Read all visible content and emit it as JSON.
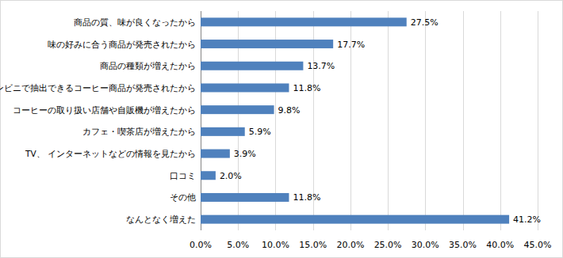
{
  "chart_data": {
    "type": "bar",
    "orientation": "horizontal",
    "categories": [
      "商品の質、味が良くなったから",
      "味の好みに合う商品が発売されたから",
      "商品の種類が増えたから",
      "コンビニで抽出できるコーヒー商品が発売されたから",
      "コーヒーの取り扱い店舗や自販機が増えたから",
      "カフェ・喫茶店が増えたから",
      "TV、 インターネットなどの情報を見たから",
      "口コミ",
      "その他",
      "なんとなく増えた"
    ],
    "values": [
      27.5,
      17.7,
      13.7,
      11.8,
      9.8,
      5.9,
      3.9,
      2.0,
      11.8,
      41.2
    ],
    "value_labels": [
      "27.5%",
      "17.7%",
      "13.7%",
      "11.8%",
      "9.8%",
      "5.9%",
      "3.9%",
      "2.0%",
      "11.8%",
      "41.2%"
    ],
    "data_labels": true,
    "color": "#4f81bd",
    "xlim": [
      0,
      45
    ],
    "xticks": [
      {
        "value": 0,
        "label": "0.0%"
      },
      {
        "value": 5,
        "label": "5.0%"
      },
      {
        "value": 10,
        "label": "10.0%"
      },
      {
        "value": 15,
        "label": "15.0%"
      },
      {
        "value": 20,
        "label": "20.0%"
      },
      {
        "value": 25,
        "label": "25.0%"
      },
      {
        "value": 30,
        "label": "30.0%"
      },
      {
        "value": 35,
        "label": "35.0%"
      },
      {
        "value": 40,
        "label": "40.0%"
      },
      {
        "value": 45,
        "label": "45.0%"
      }
    ],
    "grid": true
  }
}
